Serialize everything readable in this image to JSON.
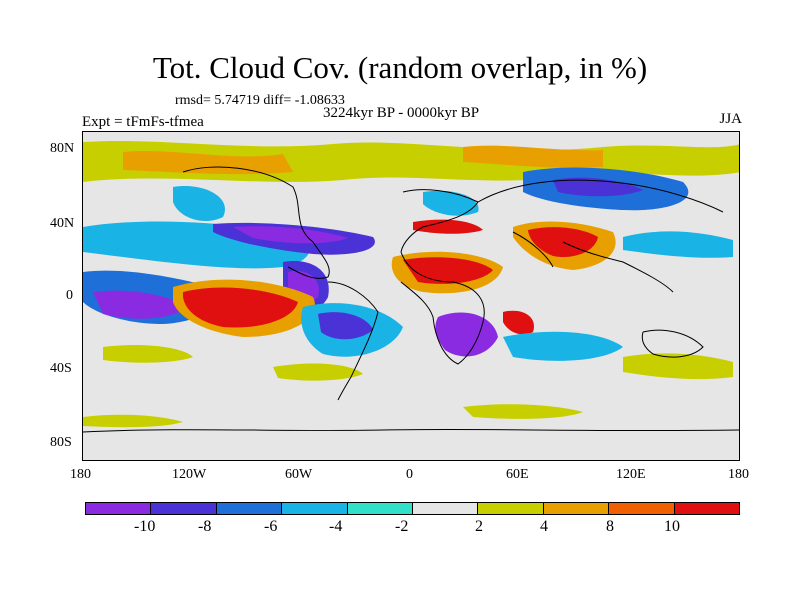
{
  "title": "Tot. Cloud Cov. (random overlap, in %)",
  "stats": "rmsd= 5.74719 diff= -1.08633",
  "period": "3224kyr BP - 0000kyr BP",
  "experiment": "Expt = tFmFs-tfmea",
  "season": "JJA",
  "y_ticks": [
    "80N",
    "40N",
    "0",
    "40S",
    "80S"
  ],
  "x_ticks": [
    "180",
    "120W",
    "60W",
    "0",
    "60E",
    "120E",
    "180"
  ],
  "colorbar": {
    "colors": [
      "#8a2be2",
      "#4b32d6",
      "#1f6fd8",
      "#19b3e6",
      "#30e0c8",
      "#e6e6e6",
      "#c8cf00",
      "#e8a000",
      "#f06000",
      "#e01010"
    ],
    "labels": [
      "-10",
      "-8",
      "-6",
      "-4",
      "-2",
      "2",
      "4",
      "8",
      "10"
    ]
  }
}
